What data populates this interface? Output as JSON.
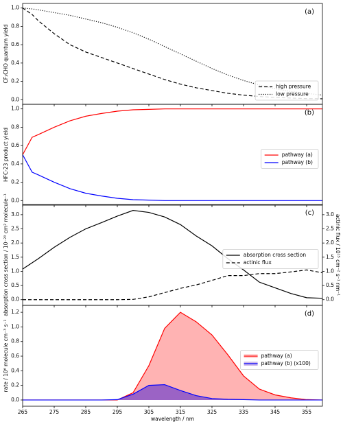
{
  "chart_data": [
    {
      "type": "line",
      "annotation": "(a)",
      "ylabel": "CF₃CHO quantum yield",
      "x": [
        265,
        268,
        270,
        275,
        280,
        285,
        290,
        295,
        300,
        305,
        310,
        315,
        320,
        325,
        330,
        335,
        340,
        345,
        350,
        355,
        360
      ],
      "xlim": [
        265,
        360
      ],
      "ylim": [
        -0.05,
        1.05
      ],
      "yticks": [
        {
          "value": 0,
          "label": "0.0"
        },
        0.2,
        0.4,
        0.6,
        0.8,
        {
          "value": 1,
          "label": "1.0"
        }
      ],
      "legend": "lower right",
      "series": [
        {
          "name": "high pressure",
          "color": "#000000",
          "linestyle": "dashed",
          "values": [
            1.0,
            0.93,
            0.86,
            0.72,
            0.6,
            0.52,
            0.46,
            0.4,
            0.34,
            0.28,
            0.22,
            0.17,
            0.13,
            0.1,
            0.07,
            0.05,
            0.035,
            0.025,
            0.018,
            0.012,
            0.01
          ]
        },
        {
          "name": "low pressure",
          "color": "#000000",
          "linestyle": "dotted",
          "values": [
            1.0,
            0.99,
            0.98,
            0.95,
            0.92,
            0.88,
            0.84,
            0.79,
            0.73,
            0.66,
            0.58,
            0.5,
            0.42,
            0.34,
            0.27,
            0.21,
            0.16,
            0.12,
            0.09,
            0.07,
            0.05
          ]
        }
      ]
    },
    {
      "type": "line",
      "annotation": "(b)",
      "ylabel": "HFC-23 product yield",
      "x": [
        265,
        268,
        270,
        275,
        280,
        285,
        290,
        295,
        300,
        305,
        310,
        315,
        320,
        325,
        330,
        335,
        340,
        345,
        350,
        355,
        360
      ],
      "xlim": [
        265,
        360
      ],
      "ylim": [
        -0.05,
        1.05
      ],
      "yticks": [
        {
          "value": 0,
          "label": "0.0"
        },
        0.2,
        0.4,
        0.6,
        0.8,
        {
          "value": 1,
          "label": "1.0"
        }
      ],
      "legend": "center right",
      "series": [
        {
          "name": "pathway (a)",
          "color": "#ff0000",
          "linestyle": "solid",
          "values": [
            0.5,
            0.69,
            0.72,
            0.8,
            0.87,
            0.92,
            0.95,
            0.975,
            0.99,
            0.995,
            1.0,
            1.0,
            1.0,
            1.0,
            1.0,
            1.0,
            1.0,
            1.0,
            1.0,
            1.0,
            1.0
          ]
        },
        {
          "name": "pathway (b)",
          "color": "#0000ff",
          "linestyle": "solid",
          "values": [
            0.5,
            0.31,
            0.28,
            0.2,
            0.13,
            0.08,
            0.05,
            0.025,
            0.01,
            0.005,
            0.0,
            0.0,
            0.0,
            0.0,
            0.0,
            0.0,
            0.0,
            0.0,
            0.0,
            0.0,
            0.0
          ]
        }
      ]
    },
    {
      "type": "line",
      "annotation": "(c)",
      "ylabel": "absorption cross section  / 10⁻²⁰ cm² molecule⁻¹",
      "y2label": "actinic flux / 10¹⁵ cm⁻² s⁻¹ nm⁻¹",
      "x": [
        265,
        270,
        275,
        280,
        285,
        290,
        295,
        300,
        305,
        310,
        315,
        320,
        325,
        330,
        335,
        340,
        345,
        350,
        355,
        360
      ],
      "xlim": [
        265,
        360
      ],
      "ylim": [
        -0.2,
        3.36
      ],
      "y2lim": [
        -0.2,
        3.36
      ],
      "yticks": [
        {
          "value": 0,
          "label": "0.0"
        },
        0.5,
        {
          "value": 1,
          "label": "1.0"
        },
        1.5,
        {
          "value": 2,
          "label": "2.0"
        },
        2.5,
        {
          "value": 3,
          "label": "3.0"
        }
      ],
      "y2ticks": [
        {
          "value": 0,
          "label": "0.0"
        },
        0.5,
        {
          "value": 1,
          "label": "1.0"
        },
        1.5,
        {
          "value": 2,
          "label": "2.0"
        },
        2.5,
        {
          "value": 3,
          "label": "3.0"
        }
      ],
      "legend": "center right",
      "series": [
        {
          "name": "absorption cross section",
          "color": "#000000",
          "linestyle": "solid",
          "values": [
            1.08,
            1.45,
            1.85,
            2.2,
            2.5,
            2.72,
            2.95,
            3.15,
            3.08,
            2.92,
            2.65,
            2.25,
            1.9,
            1.45,
            1.05,
            0.62,
            0.42,
            0.22,
            0.07,
            0.05
          ]
        },
        {
          "name": "actinic flux",
          "color": "#000000",
          "linestyle": "dashed",
          "axis": "y2",
          "values": [
            0,
            0,
            0,
            0,
            0,
            0,
            0,
            0.01,
            0.1,
            0.25,
            0.4,
            0.52,
            0.68,
            0.85,
            0.85,
            0.92,
            0.92,
            0.98,
            1.05,
            0.95
          ]
        }
      ]
    },
    {
      "type": "area",
      "annotation": "(d)",
      "ylabel": "rate / 10⁶ molecule cm⁻³ s⁻¹",
      "xlabel": "wavelength / nm",
      "x": [
        265,
        270,
        275,
        280,
        285,
        290,
        295,
        300,
        305,
        310,
        315,
        320,
        325,
        330,
        335,
        340,
        345,
        350,
        355,
        360
      ],
      "xlim": [
        265,
        360
      ],
      "ylim": [
        -0.085,
        1.295
      ],
      "xticks": [
        265,
        275,
        285,
        295,
        305,
        315,
        325,
        335,
        345,
        355
      ],
      "yticks": [
        {
          "value": 0,
          "label": "0.0"
        },
        0.2,
        0.4,
        0.6,
        0.8,
        {
          "value": 1,
          "label": "1.0"
        },
        1.2
      ],
      "legend": "center right",
      "series": [
        {
          "name": "pathway (a)",
          "color": "#ff0000",
          "fill": "#ff9999",
          "values": [
            0,
            0,
            0,
            0,
            0,
            0,
            0,
            0.1,
            0.47,
            0.98,
            1.2,
            1.07,
            0.89,
            0.62,
            0.33,
            0.15,
            0.07,
            0.03,
            0.005,
            0
          ]
        },
        {
          "name": "pathway (b) (x100)",
          "color": "#0000ff",
          "fill": "#8a55c8",
          "values": [
            0,
            0,
            0,
            0,
            0,
            0,
            0.005,
            0.08,
            0.2,
            0.21,
            0.13,
            0.06,
            0.02,
            0.01,
            0.005,
            0,
            0,
            0,
            0,
            0
          ]
        }
      ]
    }
  ]
}
